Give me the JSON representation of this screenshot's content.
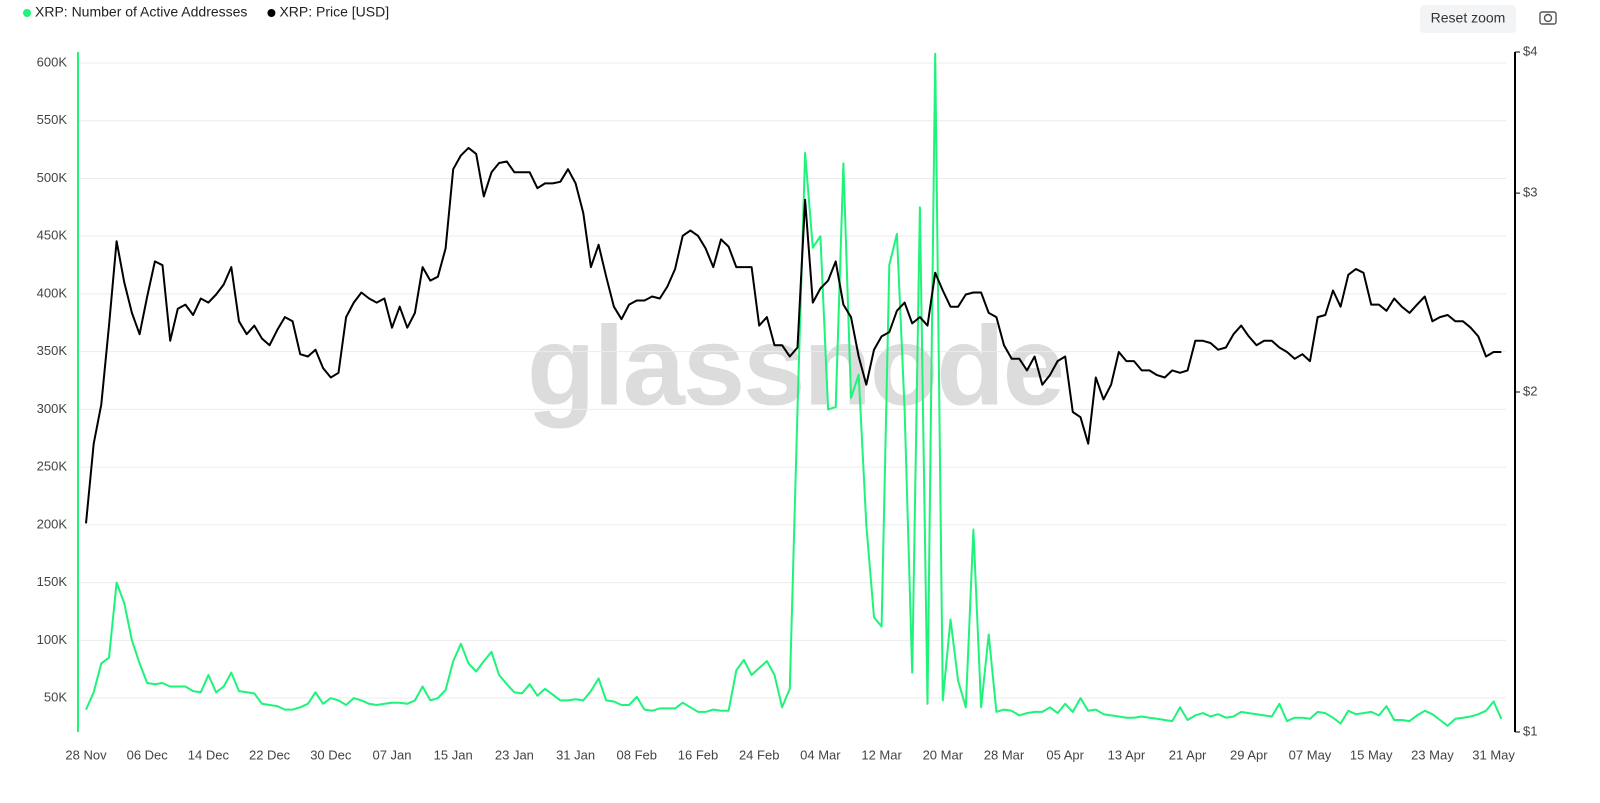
{
  "chart_data": {
    "type": "line",
    "watermark": "glassnode",
    "button": "Reset zoom",
    "categories": [
      "28 Nov",
      null,
      null,
      null,
      null,
      null,
      null,
      null,
      "06 Dec",
      null,
      null,
      null,
      null,
      null,
      null,
      null,
      "14 Dec",
      null,
      null,
      null,
      null,
      null,
      null,
      null,
      "22 Dec",
      null,
      null,
      null,
      null,
      null,
      null,
      null,
      "30 Dec",
      null,
      null,
      null,
      null,
      null,
      null,
      null,
      "07 Jan",
      null,
      null,
      null,
      null,
      null,
      null,
      null,
      "15 Jan",
      null,
      null,
      null,
      null,
      null,
      null,
      null,
      "23 Jan",
      null,
      null,
      null,
      null,
      null,
      null,
      null,
      "31 Jan",
      null,
      null,
      null,
      null,
      null,
      null,
      null,
      "08 Feb",
      null,
      null,
      null,
      null,
      null,
      null,
      null,
      "16 Feb",
      null,
      null,
      null,
      null,
      null,
      null,
      null,
      "24 Feb",
      null,
      null,
      null,
      null,
      null,
      null,
      null,
      "04 Mar",
      null,
      null,
      null,
      null,
      null,
      null,
      null,
      "12 Mar",
      null,
      null,
      null,
      null,
      null,
      null,
      null,
      "20 Mar",
      null,
      null,
      null,
      null,
      null,
      null,
      null,
      "28 Mar",
      null,
      null,
      null,
      null,
      null,
      null,
      null,
      "05 Apr",
      null,
      null,
      null,
      null,
      null,
      null,
      null,
      "13 Apr",
      null,
      null,
      null,
      null,
      null,
      null,
      null,
      "21 Apr",
      null,
      null,
      null,
      null,
      null,
      null,
      null,
      "29 Apr",
      null,
      null,
      null,
      null,
      null,
      null,
      null,
      "07 May",
      null,
      null,
      null,
      null,
      null,
      null,
      null,
      "15 May",
      null,
      null,
      null,
      null,
      null,
      null,
      null,
      "23 May",
      null,
      null,
      null,
      null,
      null,
      null,
      null,
      "31 May",
      null
    ],
    "ylim": [
      20600,
      609500
    ],
    "yticks": [
      {
        "value": 50000,
        "label": "50K"
      },
      {
        "value": 100000,
        "label": "100K"
      },
      {
        "value": 150000,
        "label": "150K"
      },
      {
        "value": 200000,
        "label": "200K"
      },
      {
        "value": 250000,
        "label": "250K"
      },
      {
        "value": 300000,
        "label": "300K"
      },
      {
        "value": 350000,
        "label": "350K"
      },
      {
        "value": 400000,
        "label": "400K"
      },
      {
        "value": 450000,
        "label": "450K"
      },
      {
        "value": 500000,
        "label": "500K"
      },
      {
        "value": 550000,
        "label": "550K"
      },
      {
        "value": 600000,
        "label": "600K"
      }
    ],
    "y2lim": [
      1,
      4
    ],
    "y2log": true,
    "y2ticks": [
      {
        "value": 1,
        "label": "$1"
      },
      {
        "value": 2,
        "label": "$2"
      },
      {
        "value": 3,
        "label": "$3"
      },
      {
        "value": 4,
        "label": "$4"
      }
    ],
    "grid": true,
    "legend": "top-left",
    "series": [
      {
        "name": "XRP: Number of Active Addresses",
        "color": "#1ef37a",
        "axis": "y",
        "values": [
          40000,
          55000,
          80000,
          85000,
          150000,
          132000,
          100000,
          80000,
          63000,
          62000,
          63000,
          60000,
          60000,
          60000,
          56000,
          55000,
          70000,
          55000,
          60000,
          72000,
          56000,
          55000,
          54000,
          45000,
          44000,
          43000,
          40000,
          40000,
          42000,
          45000,
          55000,
          45000,
          50000,
          48000,
          44000,
          50000,
          48000,
          45000,
          44000,
          45000,
          46000,
          46000,
          45000,
          48000,
          60000,
          48000,
          50000,
          57000,
          82000,
          97000,
          80000,
          73000,
          82000,
          90000,
          70000,
          62000,
          55000,
          54000,
          62000,
          52000,
          58000,
          53000,
          48000,
          48000,
          49000,
          48000,
          56000,
          67000,
          48000,
          47000,
          44000,
          44000,
          51000,
          40000,
          39000,
          41000,
          41000,
          41000,
          46000,
          42000,
          38000,
          38000,
          40000,
          39000,
          39000,
          74000,
          83000,
          70000,
          76000,
          82000,
          70000,
          42000,
          58000,
          300000,
          522000,
          440000,
          450000,
          300000,
          302000,
          513000,
          310000,
          330000,
          200000,
          120000,
          112000,
          425000,
          452000,
          300000,
          72000,
          475000,
          45000,
          608000,
          48000,
          118000,
          65000,
          42000,
          196000,
          42000,
          105000,
          38000,
          40000,
          39000,
          35000,
          37000,
          38000,
          38000,
          42000,
          37000,
          45000,
          38000,
          50000,
          39000,
          40000,
          36000,
          35000,
          34000,
          33000,
          33000,
          34000,
          33000,
          32000,
          31000,
          30000,
          42000,
          31000,
          35000,
          37000,
          34000,
          36000,
          33000,
          34000,
          38000,
          37000,
          36000,
          35000,
          34000,
          45000,
          30000,
          33000,
          33000,
          32000,
          38000,
          37000,
          33000,
          28000,
          39000,
          36000,
          37000,
          38000,
          35000,
          43000,
          31000,
          31000,
          30000,
          35000,
          39000,
          36000,
          31000,
          26000,
          32000,
          33000,
          34000,
          36000,
          39000,
          47000,
          32000
        ]
      },
      {
        "name": "XRP: Price [USD]",
        "color": "#000000",
        "axis": "y2",
        "values": [
          1.53,
          1.8,
          1.95,
          2.29,
          2.72,
          2.5,
          2.35,
          2.25,
          2.43,
          2.61,
          2.59,
          2.22,
          2.37,
          2.39,
          2.34,
          2.42,
          2.4,
          2.44,
          2.49,
          2.58,
          2.31,
          2.25,
          2.29,
          2.23,
          2.2,
          2.27,
          2.33,
          2.31,
          2.16,
          2.15,
          2.18,
          2.1,
          2.06,
          2.08,
          2.33,
          2.4,
          2.45,
          2.42,
          2.4,
          2.42,
          2.28,
          2.38,
          2.28,
          2.35,
          2.58,
          2.51,
          2.53,
          2.68,
          3.15,
          3.24,
          3.29,
          3.25,
          2.98,
          3.13,
          3.19,
          3.2,
          3.13,
          3.13,
          3.13,
          3.03,
          3.06,
          3.06,
          3.07,
          3.15,
          3.06,
          2.88,
          2.58,
          2.7,
          2.53,
          2.38,
          2.32,
          2.39,
          2.41,
          2.41,
          2.43,
          2.42,
          2.48,
          2.57,
          2.75,
          2.78,
          2.75,
          2.68,
          2.58,
          2.73,
          2.69,
          2.58,
          2.58,
          2.58,
          2.29,
          2.33,
          2.2,
          2.2,
          2.15,
          2.19,
          2.96,
          2.4,
          2.47,
          2.51,
          2.61,
          2.39,
          2.33,
          2.15,
          2.03,
          2.18,
          2.24,
          2.26,
          2.36,
          2.4,
          2.3,
          2.33,
          2.29,
          2.55,
          2.46,
          2.38,
          2.38,
          2.44,
          2.45,
          2.45,
          2.35,
          2.33,
          2.2,
          2.14,
          2.14,
          2.09,
          2.15,
          2.03,
          2.07,
          2.13,
          2.15,
          1.92,
          1.9,
          1.8,
          2.06,
          1.97,
          2.03,
          2.17,
          2.13,
          2.13,
          2.09,
          2.09,
          2.07,
          2.06,
          2.09,
          2.08,
          2.09,
          2.22,
          2.22,
          2.21,
          2.18,
          2.19,
          2.25,
          2.29,
          2.24,
          2.2,
          2.22,
          2.22,
          2.19,
          2.17,
          2.14,
          2.16,
          2.13,
          2.33,
          2.34,
          2.46,
          2.38,
          2.54,
          2.57,
          2.55,
          2.39,
          2.39,
          2.36,
          2.42,
          2.38,
          2.35,
          2.39,
          2.43,
          2.31,
          2.33,
          2.34,
          2.31,
          2.31,
          2.28,
          2.24,
          2.15,
          2.17,
          2.17
        ]
      }
    ]
  }
}
